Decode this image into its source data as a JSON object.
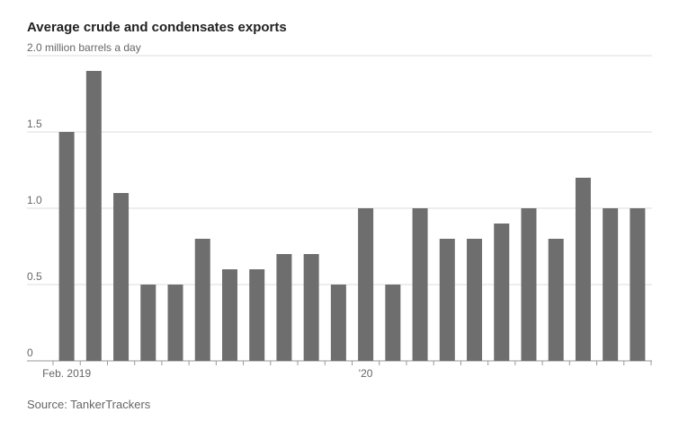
{
  "chart_data": {
    "type": "bar",
    "title": "Average crude and condensates exports",
    "source": "Source: TankerTrackers",
    "categories": [
      "Feb. 2019",
      null,
      null,
      null,
      null,
      null,
      null,
      null,
      null,
      null,
      null,
      "'20",
      null,
      null,
      null,
      null,
      null,
      null,
      null,
      null,
      null,
      null
    ],
    "values": [
      1.5,
      1.9,
      1.1,
      0.5,
      0.5,
      0.8,
      0.6,
      0.6,
      0.7,
      0.7,
      0.5,
      1.0,
      0.5,
      1.0,
      0.8,
      0.8,
      0.9,
      1.0,
      0.8,
      1.2,
      1.0,
      1.0
    ],
    "color": "#6e6e6e",
    "ylim": [
      0,
      2
    ],
    "yticks": [
      0,
      0.5,
      {
        "value": 1,
        "label": "1.0"
      },
      1.5,
      {
        "value": 2,
        "label": "2.0 million barrels a day"
      }
    ],
    "grid": true
  }
}
